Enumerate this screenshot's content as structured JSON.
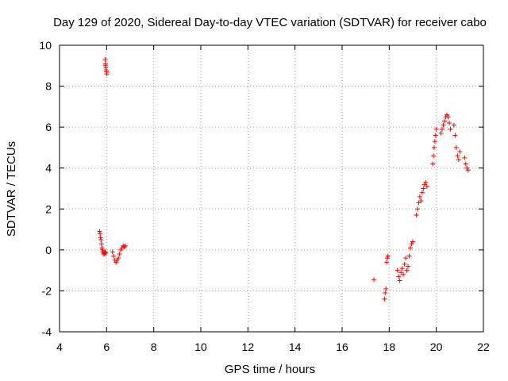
{
  "chart_data": {
    "type": "scatter",
    "title": "Day 129 of 2020, Sidereal Day-to-day VTEC variation (SDTVAR) for receiver cabo",
    "xlabel": "GPS time / hours",
    "ylabel": "SDTVAR / TECUs",
    "xlim": [
      4,
      22
    ],
    "ylim": [
      -4,
      10
    ],
    "xticks": [
      4,
      6,
      8,
      10,
      12,
      14,
      16,
      18,
      20,
      22
    ],
    "yticks": [
      -4,
      -2,
      0,
      2,
      4,
      6,
      8,
      10
    ],
    "grid": true,
    "marker": "+",
    "series": [
      {
        "name": "SDTVAR",
        "color": "#ff0000",
        "x": [
          5.94,
          5.95,
          5.96,
          5.97,
          5.98,
          5.99,
          6.0,
          5.7,
          5.72,
          5.74,
          5.76,
          5.78,
          5.8,
          5.82,
          5.84,
          5.86,
          5.88,
          5.9,
          5.92,
          5.94,
          5.96,
          6.25,
          6.3,
          6.35,
          6.4,
          6.45,
          6.5,
          6.55,
          6.6,
          6.65,
          6.7,
          6.75,
          6.8,
          17.35,
          17.8,
          17.83,
          17.86,
          17.89,
          17.92,
          17.95,
          18.35,
          18.4,
          18.45,
          18.5,
          18.55,
          18.6,
          18.65,
          18.7,
          18.75,
          18.8,
          18.85,
          18.9,
          18.95,
          19.0,
          19.15,
          19.2,
          19.25,
          19.3,
          19.35,
          19.4,
          19.45,
          19.5,
          19.55,
          19.6,
          19.85,
          19.88,
          19.91,
          19.94,
          19.97,
          20.0,
          20.2,
          20.25,
          20.3,
          20.35,
          20.4,
          20.45,
          20.5,
          20.55,
          20.6,
          20.75,
          20.8,
          20.85,
          20.9,
          20.95,
          21.0,
          21.2,
          21.25,
          21.3,
          21.35
        ],
        "y": [
          9.3,
          9.1,
          9.0,
          8.9,
          8.8,
          8.7,
          8.6,
          0.9,
          0.8,
          0.6,
          0.5,
          0.3,
          0.1,
          0.0,
          -0.1,
          -0.2,
          -0.1,
          -0.15,
          -0.2,
          -0.1,
          -0.15,
          -0.1,
          -0.3,
          -0.5,
          -0.6,
          -0.5,
          -0.4,
          -0.2,
          0.0,
          0.1,
          0.2,
          0.15,
          0.2,
          -1.45,
          -2.4,
          -2.1,
          -1.9,
          -0.6,
          -0.4,
          -0.3,
          -1.0,
          -1.3,
          -1.5,
          -1.1,
          -0.9,
          -1.2,
          -0.7,
          -0.4,
          -1.0,
          -0.8,
          -0.3,
          0.1,
          0.3,
          0.4,
          1.7,
          2.0,
          2.3,
          2.6,
          2.4,
          2.8,
          3.0,
          3.2,
          3.3,
          3.1,
          4.2,
          4.6,
          5.0,
          5.3,
          5.6,
          5.9,
          5.7,
          5.9,
          6.1,
          6.3,
          6.5,
          6.6,
          6.5,
          6.2,
          5.9,
          6.1,
          5.6,
          5.0,
          4.6,
          4.4,
          4.8,
          4.5,
          4.2,
          4.0,
          3.9
        ]
      }
    ]
  }
}
